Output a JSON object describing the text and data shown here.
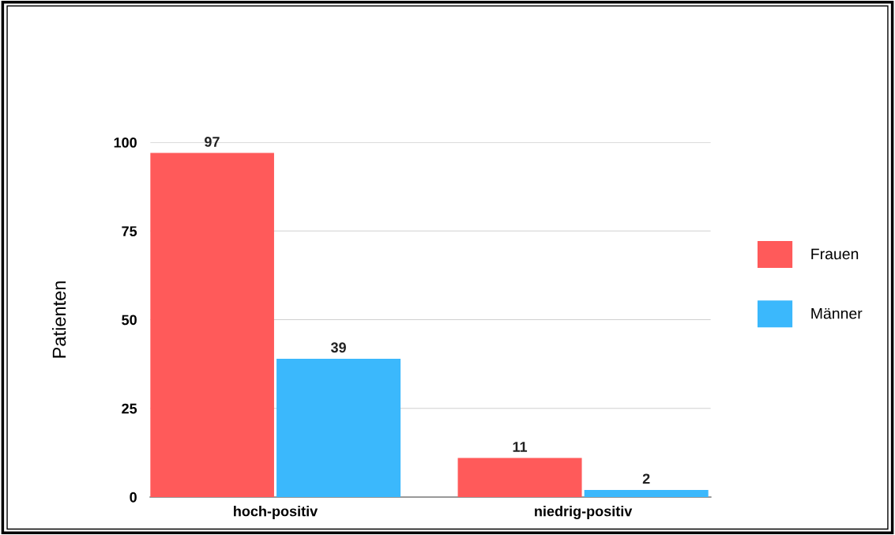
{
  "chart_data": {
    "type": "bar",
    "ylabel": "Patienten",
    "categories": [
      "hoch-positiv",
      "niedrig-positiv"
    ],
    "series": [
      {
        "name": "Frauen",
        "color": "#ff5a5a",
        "values": [
          97,
          11
        ]
      },
      {
        "name": "Männer",
        "color": "#3bb8fc",
        "values": [
          39,
          2
        ]
      }
    ],
    "ylim": [
      0,
      100
    ],
    "yticks": [
      0,
      25,
      50,
      75,
      100
    ],
    "grid": "y",
    "legend": "right",
    "data_labels": true
  }
}
